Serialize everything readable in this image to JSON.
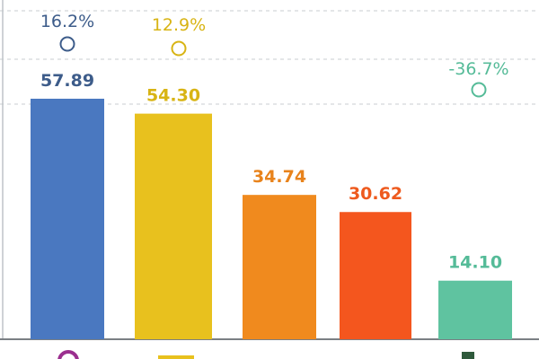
{
  "chart_data": {
    "type": "bar",
    "categories": [
      "",
      "",
      "",
      "",
      ""
    ],
    "values": [
      57.89,
      54.3,
      34.74,
      30.62,
      14.1
    ],
    "value_labels": [
      "57.89",
      "54.30",
      "34.74",
      "30.62",
      "14.10"
    ],
    "change_labels": [
      "16.2%",
      "12.9%",
      "",
      "",
      "-36.7%"
    ],
    "change_values": [
      16.2,
      12.9,
      null,
      null,
      -36.7
    ],
    "colors": [
      "#4a78c0",
      "#e8c11e",
      "#f08a1e",
      "#f4561e",
      "#5fc3a0"
    ],
    "label_colors": [
      "#3d5c8a",
      "#d8b414",
      "#e8831c",
      "#ee5a1e",
      "#55bb98"
    ],
    "title": "",
    "xlabel": "",
    "ylabel": "",
    "ylim": [
      0,
      70
    ],
    "grid": true
  }
}
